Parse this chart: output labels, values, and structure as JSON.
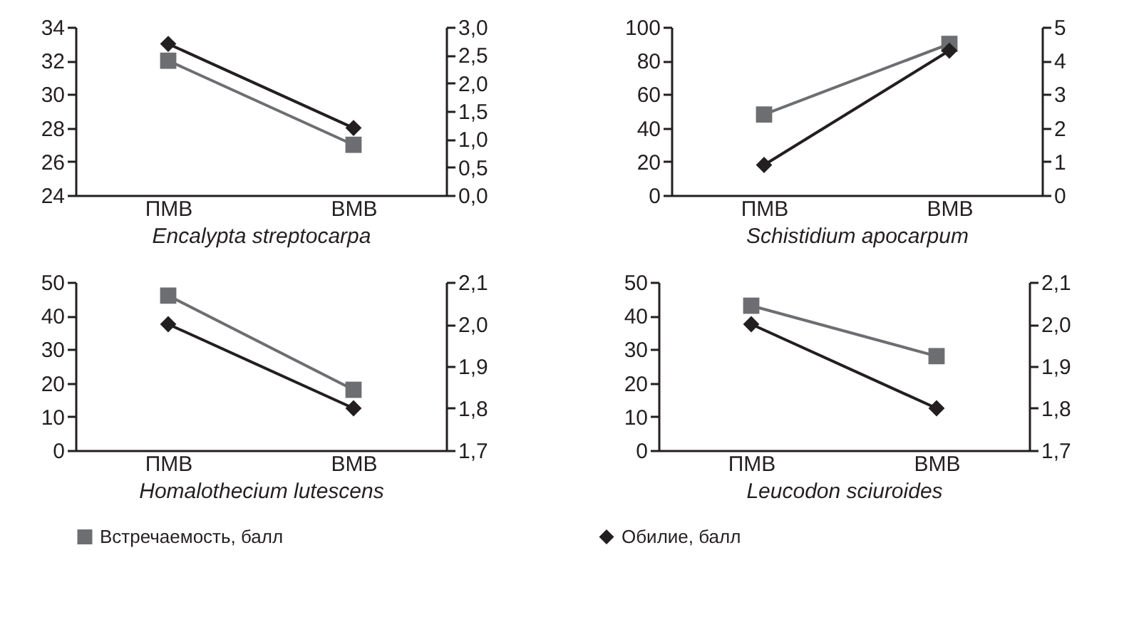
{
  "chart_data": [
    {
      "type": "line",
      "xlabel": "Encalypta streptocarpa",
      "categories": [
        "ПМВ",
        "ВМВ"
      ],
      "ylim": [
        24,
        34
      ],
      "yticks": [
        24,
        26,
        28,
        30,
        32,
        34
      ],
      "y2lim": [
        0,
        3
      ],
      "y2ticks": [
        {
          "value": 0,
          "label": "0,0"
        },
        {
          "value": 0.5,
          "label": "0,5"
        },
        {
          "value": 1,
          "label": "1,0"
        },
        {
          "value": 1.5,
          "label": "1,5"
        },
        {
          "value": 2,
          "label": "2,0"
        },
        {
          "value": 2.5,
          "label": "2,5"
        },
        {
          "value": 3,
          "label": "3,0"
        }
      ],
      "legend": "bottom",
      "grid": false,
      "series": [
        {
          "name": "Встречаемость, балл",
          "color": "#6d6e71",
          "marker": "square",
          "values": [
            32,
            27
          ]
        },
        {
          "name": "Обилие, балл",
          "color": "#231f20",
          "marker": "diamond",
          "axis": "y2",
          "values": [
            2.7,
            1.2
          ]
        }
      ]
    },
    {
      "type": "line",
      "xlabel": "Schistidium apocarpum",
      "categories": [
        "ПМВ",
        "ВМВ"
      ],
      "ylim": [
        0,
        100
      ],
      "yticks": [
        0,
        20,
        40,
        60,
        80,
        100
      ],
      "y2lim": [
        0,
        5
      ],
      "y2ticks": [
        0,
        1,
        2,
        3,
        4,
        5
      ],
      "grid": false,
      "series": [
        {
          "color": "#6d6e71",
          "marker": "square",
          "values": [
            48,
            90
          ]
        },
        {
          "color": "#231f20",
          "marker": "diamond",
          "axis": "y2",
          "values": [
            0.9,
            4.3
          ]
        }
      ]
    },
    {
      "type": "line",
      "xlabel": "Homalothecium lutescens",
      "categories": [
        "ПМВ",
        "ВМВ"
      ],
      "ylim": [
        0,
        50
      ],
      "yticks": [
        0,
        10,
        20,
        30,
        40,
        50
      ],
      "y2lim": [
        1.7,
        2.1
      ],
      "y2ticks": [
        {
          "value": 1.7,
          "label": "1,7"
        },
        {
          "value": 1.8,
          "label": "1,8"
        },
        {
          "value": 1.9,
          "label": "1,9"
        },
        {
          "value": 2.0,
          "label": "2,0"
        },
        {
          "value": 2.1,
          "label": "2,1"
        }
      ],
      "grid": false,
      "series": [
        {
          "color": "#6d6e71",
          "marker": "square",
          "values": [
            46,
            18
          ]
        },
        {
          "color": "#231f20",
          "marker": "diamond",
          "axis": "y2",
          "values": [
            2.0,
            1.8
          ]
        }
      ]
    },
    {
      "type": "line",
      "xlabel": "Leucodon sciuroides",
      "categories": [
        "ПМВ",
        "ВМВ"
      ],
      "ylim": [
        0,
        50
      ],
      "yticks": [
        0,
        10,
        20,
        30,
        40,
        50
      ],
      "y2lim": [
        1.7,
        2.1
      ],
      "y2ticks": [
        {
          "value": 1.7,
          "label": "1,7"
        },
        {
          "value": 1.8,
          "label": "1,8"
        },
        {
          "value": 1.9,
          "label": "1,9"
        },
        {
          "value": 2.0,
          "label": "2,0"
        },
        {
          "value": 2.1,
          "label": "2,1"
        }
      ],
      "grid": false,
      "series": [
        {
          "color": "#6d6e71",
          "marker": "square",
          "values": [
            43,
            28
          ]
        },
        {
          "color": "#231f20",
          "marker": "diamond",
          "axis": "y2",
          "values": [
            2.0,
            1.8
          ]
        }
      ]
    }
  ]
}
